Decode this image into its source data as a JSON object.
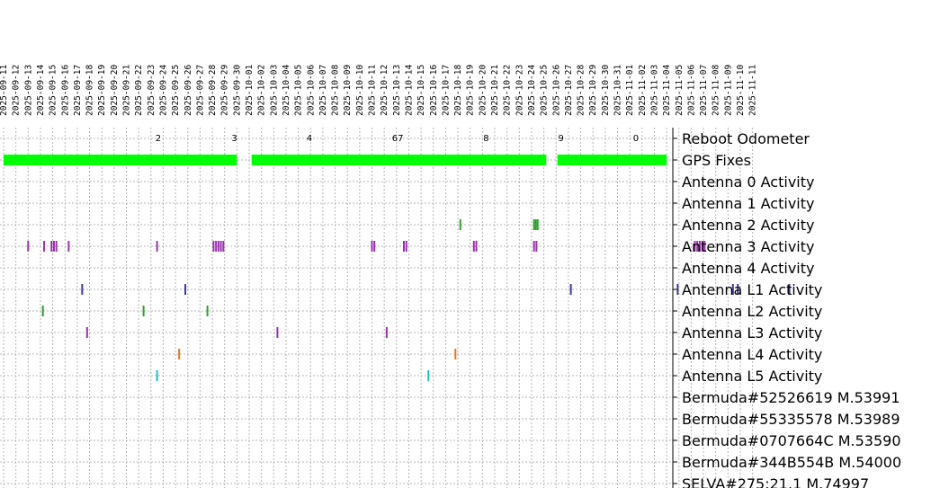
{
  "chart_data": {
    "type": "timeline",
    "dates": [
      "2025-09-11",
      "2025-09-12",
      "2025-09-13",
      "2025-09-14",
      "2025-09-15",
      "2025-09-16",
      "2025-09-17",
      "2025-09-18",
      "2025-09-19",
      "2025-09-20",
      "2025-09-21",
      "2025-09-22",
      "2025-09-23",
      "2025-09-24",
      "2025-09-25",
      "2025-09-26",
      "2025-09-27",
      "2025-09-28",
      "2025-09-29",
      "2025-09-30",
      "2025-10-01",
      "2025-10-02",
      "2025-10-03",
      "2025-10-04",
      "2025-10-05",
      "2025-10-06",
      "2025-10-07",
      "2025-10-08",
      "2025-10-09",
      "2025-10-10",
      "2025-10-11",
      "2025-10-12",
      "2025-10-13",
      "2025-10-14",
      "2025-10-15",
      "2025-10-16",
      "2025-10-17",
      "2025-10-18",
      "2025-10-19",
      "2025-10-20",
      "2025-10-21",
      "2025-10-22",
      "2025-10-23",
      "2025-10-24",
      "2025-10-25",
      "2025-10-26",
      "2025-10-27",
      "2025-10-28",
      "2025-10-29",
      "2025-10-30",
      "2025-10-31",
      "2025-11-01",
      "2025-11-02",
      "2025-11-03",
      "2025-11-04",
      "2025-11-05",
      "2025-11-06",
      "2025-11-07",
      "2025-11-08",
      "2025-11-09",
      "2025-11-10",
      "2025-11-11"
    ],
    "rows": [
      "Reboot Odometer",
      "GPS Fixes",
      "Antenna 0 Activity",
      "Antenna 1 Activity",
      "Antenna 2 Activity",
      "Antenna 3 Activity",
      "Antenna 4 Activity",
      "Antenna L1 Activity",
      "Antenna L2 Activity",
      "Antenna L3 Activity",
      "Antenna L4 Activity",
      "Antenna L5 Activity",
      "Bermuda#52526619 M.53991",
      "Bermuda#55335578 M.53989",
      "Bermuda#0707664C M.53590",
      "Bermuda#344B554B M.54000",
      "SELVA#275:21.1 M.74997"
    ],
    "odometer": [
      {
        "date": 12.6,
        "label": "2"
      },
      {
        "date": 18.8,
        "label": "3"
      },
      {
        "date": 24.9,
        "label": "4"
      },
      {
        "date": 32.1,
        "label": "67"
      },
      {
        "date": 39.3,
        "label": "8"
      },
      {
        "date": 45.4,
        "label": "9"
      },
      {
        "date": 51.5,
        "label": "0"
      }
    ],
    "gps_fixes": [
      [
        0.0,
        19.0
      ],
      [
        20.2,
        44.2
      ],
      [
        45.1,
        54.0
      ]
    ],
    "activity": [
      {
        "row": "Antenna 2 Activity",
        "color": "#2ca02c",
        "dates": [
          37.2,
          43.2,
          43.35,
          43.5
        ]
      },
      {
        "row": "Antenna 3 Activity",
        "color": "#9b30b0",
        "dates": [
          2.0,
          3.3,
          3.9,
          4.1,
          4.3,
          5.3,
          12.5,
          17.1,
          17.3,
          17.5,
          17.7,
          17.9,
          30.0,
          30.2,
          32.6,
          32.8,
          38.3,
          38.5,
          43.2,
          43.4,
          56.3,
          56.5,
          56.7,
          56.9,
          57.1
        ]
      },
      {
        "row": "Antenna L1 Activity",
        "color": "#3a3aa8",
        "dates": [
          6.4,
          14.8,
          46.2,
          54.9,
          59.4,
          59.8,
          64.0
        ]
      },
      {
        "row": "Antenna L2 Activity",
        "color": "#2ca02c",
        "dates": [
          3.2,
          11.4,
          16.6
        ]
      },
      {
        "row": "Antenna L3 Activity",
        "color": "#9b30b0",
        "dates": [
          6.8,
          22.3,
          31.2
        ]
      },
      {
        "row": "Antenna L4 Activity",
        "color": "#e07a1f",
        "dates": [
          14.3,
          36.8
        ]
      },
      {
        "row": "Antenna L5 Activity",
        "color": "#17becf",
        "dates": [
          12.5,
          34.6
        ]
      }
    ],
    "colors": {
      "gps": "#00ff00",
      "grid": "#b4b4b4",
      "axis": "#000000"
    }
  }
}
